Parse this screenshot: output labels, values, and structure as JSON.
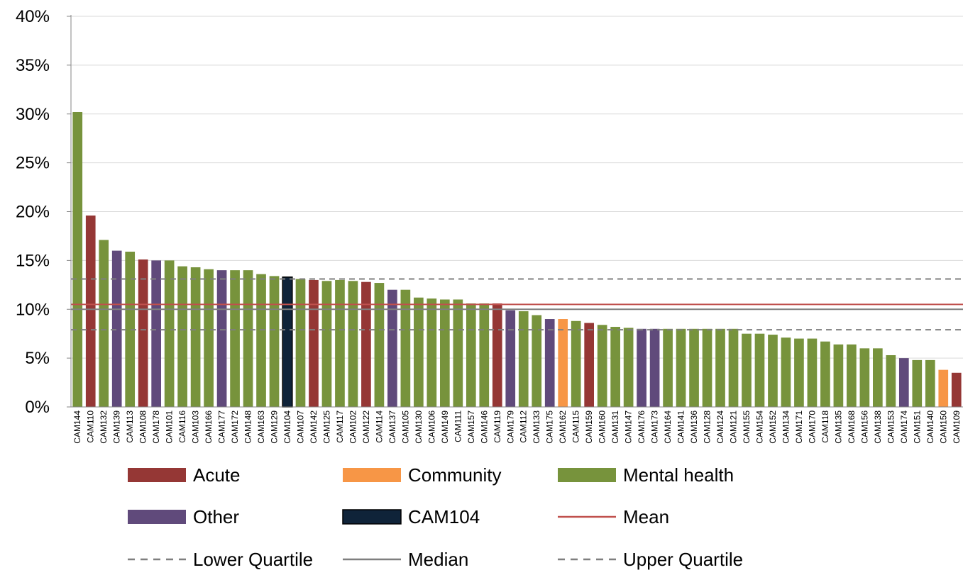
{
  "chart_data": {
    "type": "bar",
    "title": "",
    "xlabel": "",
    "ylabel": "",
    "ylim": [
      0,
      40
    ],
    "y_ticks": [
      "0%",
      "5%",
      "10%",
      "15%",
      "20%",
      "25%",
      "30%",
      "35%",
      "40%"
    ],
    "grid": true,
    "legend_position": "bottom",
    "colors": {
      "Acute": "#953735",
      "Community": "#F79646",
      "Mental health": "#77933C",
      "Other": "#604A7B",
      "CAM104": "#0F2339",
      "Mean": "#C0504D",
      "Median": "#7F7F7F",
      "Quartile": "#7F7F7F"
    },
    "categories": [
      "CAM144",
      "CAM110",
      "CAM132",
      "CAM139",
      "CAM113",
      "CAM108",
      "CAM178",
      "CAM101",
      "CAM116",
      "CAM103",
      "CAM166",
      "CAM177",
      "CAM172",
      "CAM148",
      "CAM163",
      "CAM129",
      "CAM104",
      "CAM107",
      "CAM142",
      "CAM125",
      "CAM117",
      "CAM102",
      "CAM122",
      "CAM114",
      "CAM137",
      "CAM105",
      "CAM130",
      "CAM106",
      "CAM149",
      "CAM111",
      "CAM157",
      "CAM146",
      "CAM119",
      "CAM179",
      "CAM112",
      "CAM133",
      "CAM175",
      "CAM162",
      "CAM115",
      "CAM159",
      "CAM160",
      "CAM131",
      "CAM147",
      "CAM176",
      "CAM173",
      "CAM164",
      "CAM141",
      "CAM136",
      "CAM128",
      "CAM124",
      "CAM121",
      "CAM155",
      "CAM154",
      "CAM152",
      "CAM134",
      "CAM171",
      "CAM170",
      "CAM118",
      "CAM135",
      "CAM168",
      "CAM156",
      "CAM138",
      "CAM153",
      "CAM174",
      "CAM151",
      "CAM140",
      "CAM150",
      "CAM109"
    ],
    "values": [
      30.2,
      19.6,
      17.1,
      16.0,
      15.9,
      15.1,
      15.0,
      15.0,
      14.4,
      14.3,
      14.1,
      14.0,
      14.0,
      14.0,
      13.6,
      13.4,
      13.3,
      13.1,
      13.0,
      12.9,
      13.0,
      12.9,
      12.8,
      12.7,
      12.0,
      12.0,
      11.2,
      11.1,
      11.0,
      11.0,
      10.6,
      10.6,
      10.6,
      9.9,
      9.8,
      9.4,
      9.0,
      9.0,
      8.8,
      8.6,
      8.4,
      8.2,
      8.1,
      8.0,
      8.0,
      8.0,
      8.0,
      8.0,
      8.0,
      8.0,
      8.0,
      7.5,
      7.5,
      7.4,
      7.1,
      7.0,
      7.0,
      6.7,
      6.4,
      6.4,
      6.0,
      6.0,
      5.3,
      5.0,
      4.8,
      4.8,
      3.8,
      3.5
    ],
    "groups": [
      "Mental health",
      "Acute",
      "Mental health",
      "Other",
      "Mental health",
      "Acute",
      "Other",
      "Mental health",
      "Mental health",
      "Mental health",
      "Mental health",
      "Other",
      "Mental health",
      "Mental health",
      "Mental health",
      "Mental health",
      "CAM104",
      "Mental health",
      "Acute",
      "Mental health",
      "Mental health",
      "Mental health",
      "Acute",
      "Mental health",
      "Other",
      "Mental health",
      "Mental health",
      "Mental health",
      "Mental health",
      "Mental health",
      "Mental health",
      "Mental health",
      "Acute",
      "Other",
      "Mental health",
      "Mental health",
      "Other",
      "Community",
      "Mental health",
      "Acute",
      "Mental health",
      "Mental health",
      "Mental health",
      "Other",
      "Other",
      "Mental health",
      "Mental health",
      "Mental health",
      "Mental health",
      "Mental health",
      "Mental health",
      "Mental health",
      "Mental health",
      "Mental health",
      "Mental health",
      "Mental health",
      "Mental health",
      "Mental health",
      "Mental health",
      "Mental health",
      "Mental health",
      "Mental health",
      "Mental health",
      "Other",
      "Mental health",
      "Mental health",
      "Community",
      "Acute"
    ],
    "reference_lines": [
      {
        "name": "Mean",
        "value": 10.5,
        "style": "solid",
        "color": "#C0504D"
      },
      {
        "name": "Median",
        "value": 10.0,
        "style": "solid",
        "color": "#7F7F7F"
      },
      {
        "name": "Lower Quartile",
        "value": 7.9,
        "style": "dashed",
        "color": "#7F7F7F"
      },
      {
        "name": "Upper Quartile",
        "value": 13.1,
        "style": "dashed",
        "color": "#7F7F7F"
      }
    ],
    "legend": [
      {
        "label": "Acute",
        "kind": "box",
        "color": "#953735"
      },
      {
        "label": "Community",
        "kind": "box",
        "color": "#F79646"
      },
      {
        "label": "Mental health",
        "kind": "box",
        "color": "#77933C"
      },
      {
        "label": "Other",
        "kind": "box",
        "color": "#604A7B"
      },
      {
        "label": "CAM104",
        "kind": "box",
        "color": "#0F2339"
      },
      {
        "label": "Mean",
        "kind": "line",
        "color": "#C0504D",
        "dash": false
      },
      {
        "label": "Lower Quartile",
        "kind": "line",
        "color": "#7F7F7F",
        "dash": true
      },
      {
        "label": "Median",
        "kind": "line",
        "color": "#7F7F7F",
        "dash": false
      },
      {
        "label": "Upper Quartile",
        "kind": "line",
        "color": "#7F7F7F",
        "dash": true
      }
    ]
  }
}
